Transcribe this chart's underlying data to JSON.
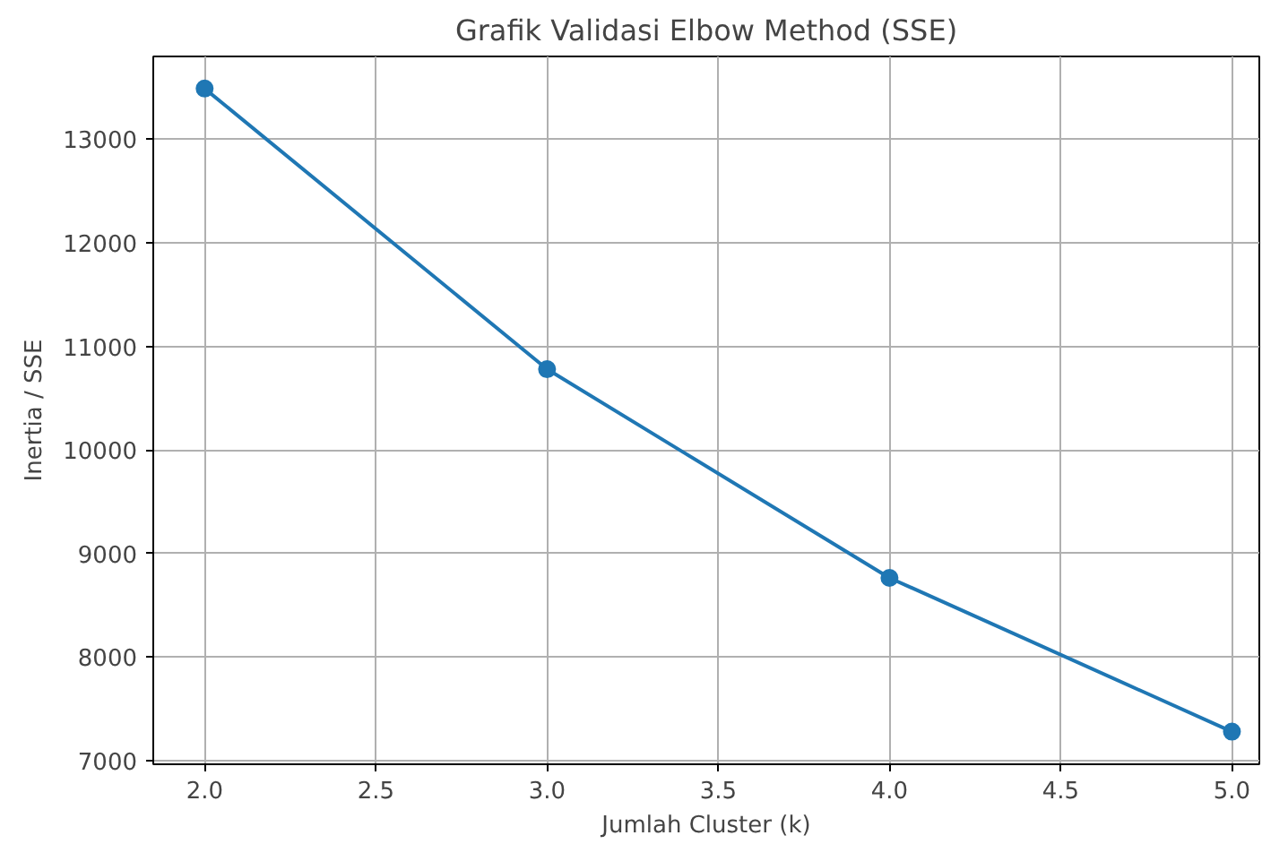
{
  "chart_data": {
    "type": "line",
    "title": "Grafik Validasi Elbow Method (SSE)",
    "xlabel": "Jumlah Cluster (k)",
    "ylabel": "Inertia / SSE",
    "x": [
      2,
      3,
      4,
      5
    ],
    "series": [
      {
        "color": "#1f77b4",
        "values": [
          13490,
          10780,
          8765,
          7280
        ]
      }
    ],
    "xlim": [
      1.85,
      5.08
    ],
    "ylim": [
      6965,
      13800
    ],
    "xticks": [
      {
        "value": 2,
        "label": "2.0"
      },
      {
        "value": 2.5,
        "label": "2.5"
      },
      {
        "value": 3,
        "label": "3.0"
      },
      {
        "value": 3.5,
        "label": "3.5"
      },
      {
        "value": 4,
        "label": "4.0"
      },
      {
        "value": 4.5,
        "label": "4.5"
      },
      {
        "value": 5,
        "label": "5.0"
      }
    ],
    "yticks": [
      7000,
      8000,
      9000,
      10000,
      11000,
      12000,
      13000
    ],
    "grid": true,
    "marker": "circle",
    "line_style": "solid"
  }
}
